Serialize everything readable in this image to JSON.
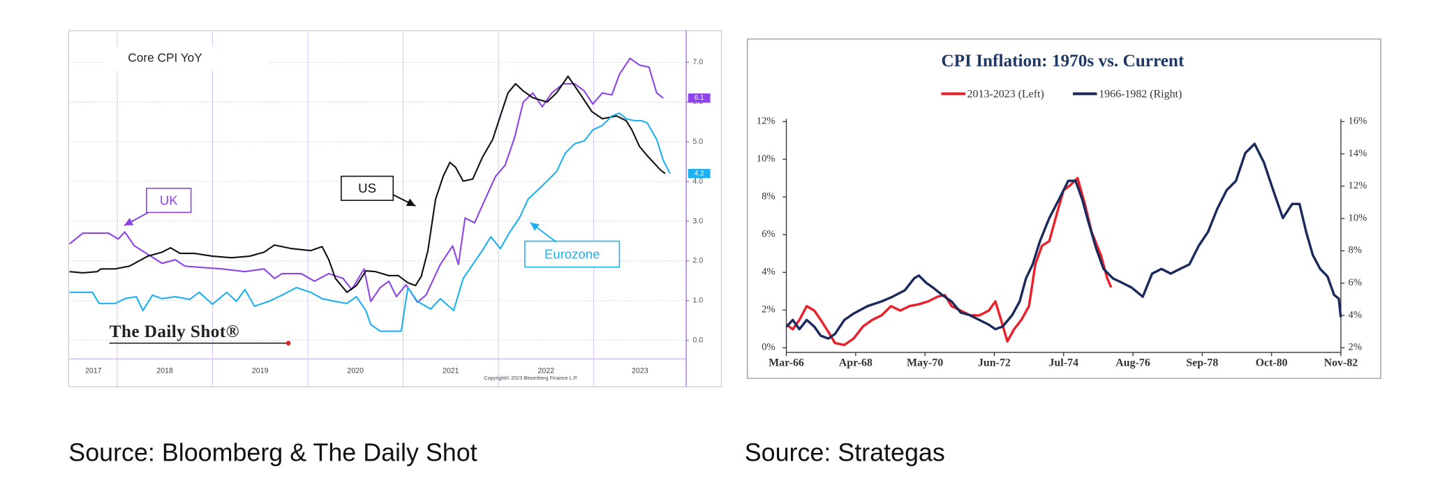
{
  "chart_data": [
    {
      "type": "line",
      "title": "Core CPI YoY",
      "logo": "The Daily Shot®",
      "copyright": "Copyright© 2023 Bloomberg Finance L.P.",
      "source": "Source: Bloomberg & The Daily Shot",
      "xlim": [
        2017.5,
        2023.97
      ],
      "xticks": [
        2017,
        2018,
        2019,
        2020,
        2021,
        2022,
        2023
      ],
      "xtick_labels": "between",
      "ylim": [
        -0.42,
        7.75
      ],
      "yaxis_position": "right",
      "grid": true,
      "legend": "callout",
      "yticks": [
        {
          "value": 0,
          "label": "0.0"
        },
        {
          "value": 1,
          "label": "1.0"
        },
        {
          "value": 2,
          "label": "2.0"
        },
        {
          "value": 3,
          "label": "3.0"
        },
        {
          "value": 4,
          "label": "4.0"
        },
        {
          "value": 5,
          "label": "5.0"
        },
        {
          "value": 6,
          "label": "6.0"
        },
        {
          "value": 7,
          "label": "7.0"
        }
      ],
      "series": [
        {
          "name": "UK",
          "color": "#8b45e8",
          "x": [
            2017.5,
            2017.64,
            2017.91,
            2018.01,
            2018.08,
            2018.18,
            2018.3,
            2018.47,
            2018.61,
            2018.71,
            2018.86,
            2019.1,
            2019.34,
            2019.54,
            2019.65,
            2019.73,
            2019.93,
            2020.07,
            2020.22,
            2020.37,
            2020.46,
            2020.59,
            2020.66,
            2020.76,
            2020.85,
            2020.93,
            2021.03,
            2021.15,
            2021.24,
            2021.39,
            2021.52,
            2021.58,
            2021.65,
            2021.75,
            2021.88,
            2021.97,
            2022.07,
            2022.17,
            2022.26,
            2022.36,
            2022.46,
            2022.56,
            2022.68,
            2022.8,
            2022.9,
            2022.99,
            2023.09,
            2023.19,
            2023.27,
            2023.38,
            2023.48,
            2023.58,
            2023.66,
            2023.73
          ],
          "values": [
            2.43,
            2.7,
            2.7,
            2.55,
            2.73,
            2.38,
            2.2,
            1.94,
            2.03,
            1.87,
            1.84,
            1.8,
            1.73,
            1.8,
            1.56,
            1.68,
            1.68,
            1.49,
            1.68,
            1.56,
            1.28,
            1.8,
            0.98,
            1.33,
            1.49,
            1.1,
            1.4,
            0.96,
            1.14,
            1.91,
            2.38,
            1.91,
            3.08,
            2.96,
            3.66,
            4.13,
            4.41,
            5.11,
            6.0,
            6.23,
            5.88,
            6.23,
            6.46,
            6.46,
            6.28,
            5.95,
            6.23,
            6.18,
            6.7,
            7.1,
            6.93,
            6.88,
            6.23,
            6.1
          ],
          "value_labels": [
            null,
            null,
            null,
            null,
            null,
            null,
            null,
            null,
            null,
            null,
            null,
            null,
            null,
            null,
            null,
            null,
            null,
            null,
            null,
            null,
            null,
            null,
            null,
            null,
            null,
            null,
            null,
            null,
            null,
            null,
            null,
            null,
            null,
            null,
            null,
            null,
            null,
            null,
            null,
            null,
            null,
            null,
            null,
            null,
            null,
            null,
            null,
            null,
            null,
            null,
            null,
            null,
            null,
            "6.1"
          ]
        },
        {
          "name": "US",
          "color": "#111111",
          "x": [
            2017.5,
            2017.64,
            2017.79,
            2017.83,
            2017.98,
            2018.13,
            2018.32,
            2018.47,
            2018.56,
            2018.66,
            2018.81,
            2019.0,
            2019.2,
            2019.39,
            2019.54,
            2019.65,
            2019.83,
            2020.03,
            2020.15,
            2020.22,
            2020.29,
            2020.41,
            2020.51,
            2020.61,
            2020.71,
            2020.85,
            2020.95,
            2021.05,
            2021.13,
            2021.19,
            2021.26,
            2021.34,
            2021.42,
            2021.49,
            2021.55,
            2021.63,
            2021.73,
            2021.83,
            2021.94,
            2022.02,
            2022.1,
            2022.18,
            2022.26,
            2022.36,
            2022.51,
            2022.61,
            2022.73,
            2022.85,
            2022.98,
            2023.09,
            2023.24,
            2023.34,
            2023.4,
            2023.48,
            2023.58,
            2023.7,
            2023.75
          ],
          "values": [
            1.73,
            1.7,
            1.73,
            1.8,
            1.8,
            1.87,
            2.12,
            2.22,
            2.33,
            2.19,
            2.19,
            2.12,
            2.08,
            2.12,
            2.22,
            2.4,
            2.31,
            2.26,
            2.36,
            2.03,
            1.56,
            1.21,
            1.38,
            1.75,
            1.73,
            1.63,
            1.63,
            1.45,
            1.38,
            1.61,
            2.26,
            3.55,
            4.13,
            4.48,
            4.36,
            4.01,
            4.06,
            4.6,
            5.06,
            5.65,
            6.23,
            6.46,
            6.28,
            6.11,
            6.0,
            6.23,
            6.65,
            6.23,
            5.76,
            5.58,
            5.65,
            5.53,
            5.3,
            4.88,
            4.6,
            4.29,
            4.2
          ]
        },
        {
          "name": "Eurozone",
          "color": "#1eb0f0",
          "x": [
            2017.5,
            2017.74,
            2017.81,
            2017.98,
            2018.08,
            2018.2,
            2018.27,
            2018.37,
            2018.47,
            2018.61,
            2018.76,
            2018.86,
            2019.0,
            2019.15,
            2019.25,
            2019.34,
            2019.44,
            2019.59,
            2019.73,
            2019.88,
            2020.03,
            2020.15,
            2020.29,
            2020.41,
            2020.51,
            2020.61,
            2020.66,
            2020.76,
            2020.98,
            2021.05,
            2021.15,
            2021.29,
            2021.39,
            2021.53,
            2021.63,
            2021.73,
            2021.83,
            2021.92,
            2022.02,
            2022.12,
            2022.22,
            2022.31,
            2022.41,
            2022.51,
            2022.61,
            2022.7,
            2022.8,
            2022.9,
            2022.99,
            2023.09,
            2023.19,
            2023.27,
            2023.34,
            2023.43,
            2023.5,
            2023.56,
            2023.66,
            2023.73,
            2023.8
          ],
          "values": [
            1.21,
            1.21,
            0.93,
            0.93,
            1.05,
            1.1,
            0.75,
            1.14,
            1.05,
            1.1,
            1.03,
            1.21,
            0.91,
            1.21,
            0.98,
            1.28,
            0.86,
            0.98,
            1.14,
            1.33,
            1.21,
            1.05,
            0.98,
            0.93,
            1.1,
            0.75,
            0.4,
            0.23,
            0.23,
            1.33,
            0.98,
            0.79,
            1.05,
            0.75,
            1.56,
            1.91,
            2.26,
            2.61,
            2.31,
            2.73,
            3.08,
            3.55,
            3.78,
            4.01,
            4.25,
            4.71,
            4.95,
            5.02,
            5.3,
            5.41,
            5.65,
            5.72,
            5.58,
            5.53,
            5.53,
            5.48,
            5.06,
            4.53,
            4.2
          ],
          "value_labels": [
            null,
            null,
            null,
            null,
            null,
            null,
            null,
            null,
            null,
            null,
            null,
            null,
            null,
            null,
            null,
            null,
            null,
            null,
            null,
            null,
            null,
            null,
            null,
            null,
            null,
            null,
            null,
            null,
            null,
            null,
            null,
            null,
            null,
            null,
            null,
            null,
            null,
            null,
            null,
            null,
            null,
            null,
            null,
            null,
            null,
            null,
            null,
            null,
            null,
            null,
            null,
            null,
            null,
            null,
            null,
            null,
            null,
            null,
            "4.2"
          ]
        }
      ]
    },
    {
      "type": "line",
      "title": "CPI Inflation: 1970s vs. Current",
      "source": "Source: Strategas",
      "xlim": [
        1966.167,
        1982.833
      ],
      "xtick_labels": "on",
      "grid": false,
      "legend": "top",
      "xticks": [
        {
          "value": 1966.167,
          "label": "Mar-66"
        },
        {
          "value": 1968.25,
          "label": "Apr-68"
        },
        {
          "value": 1970.333,
          "label": "May-70"
        },
        {
          "value": 1972.417,
          "label": "Jun-72"
        },
        {
          "value": 1974.5,
          "label": "Jul-74"
        },
        {
          "value": 1976.583,
          "label": "Aug-76"
        },
        {
          "value": 1978.667,
          "label": "Sep-78"
        },
        {
          "value": 1980.75,
          "label": "Oct-80"
        },
        {
          "value": 1982.833,
          "label": "Nov-82"
        }
      ],
      "ylim": [
        0,
        12
      ],
      "yticks": [
        {
          "value": 0,
          "label": "0%"
        },
        {
          "value": 2,
          "label": "2%"
        },
        {
          "value": 4,
          "label": "4%"
        },
        {
          "value": 6,
          "label": "6%"
        },
        {
          "value": 8,
          "label": "8%"
        },
        {
          "value": 10,
          "label": "10%"
        },
        {
          "value": 12,
          "label": "12%"
        }
      ],
      "y2lim": [
        2,
        16
      ],
      "y2ticks": [
        {
          "value": 2,
          "label": "2%"
        },
        {
          "value": 4,
          "label": "4%"
        },
        {
          "value": 6,
          "label": "6%"
        },
        {
          "value": 8,
          "label": "8%"
        },
        {
          "value": 10,
          "label": "10%"
        },
        {
          "value": 12,
          "label": "12%"
        },
        {
          "value": 14,
          "label": "14%"
        },
        {
          "value": 16,
          "label": "16%"
        }
      ],
      "series": [
        {
          "name": "2013-2023 (Left)",
          "color": "#e8212b",
          "x": [
            1966.17,
            1966.36,
            1966.56,
            1966.78,
            1967.01,
            1967.2,
            1967.43,
            1967.63,
            1967.91,
            1968.19,
            1968.47,
            1968.75,
            1969.03,
            1969.31,
            1969.59,
            1969.87,
            1970.15,
            1970.43,
            1970.71,
            1970.93,
            1971.13,
            1971.41,
            1971.69,
            1971.97,
            1972.25,
            1972.45,
            1972.62,
            1972.81,
            1973.01,
            1973.23,
            1973.46,
            1973.65,
            1973.85,
            1974.07,
            1974.3,
            1974.5,
            1974.69,
            1974.92,
            1975.14,
            1975.34,
            1975.62,
            1975.81,
            1975.93
          ],
          "values": [
            1.23,
            0.98,
            1.48,
            2.21,
            1.97,
            1.48,
            0.84,
            0.25,
            0.15,
            0.49,
            1.13,
            1.48,
            1.72,
            2.21,
            1.97,
            2.21,
            2.31,
            2.46,
            2.71,
            2.8,
            2.21,
            1.97,
            1.72,
            1.72,
            1.97,
            2.46,
            1.48,
            0.34,
            0.98,
            1.48,
            2.21,
            4.43,
            5.41,
            5.66,
            7.13,
            8.36,
            8.61,
            9.0,
            7.62,
            6.15,
            4.92,
            3.69,
            3.2
          ]
        },
        {
          "name": "1966-1982 (Right)",
          "color": "#1b2a5c",
          "axis": "y2",
          "x": [
            1966.17,
            1966.36,
            1966.56,
            1966.78,
            1967.01,
            1967.2,
            1967.43,
            1967.63,
            1967.91,
            1968.19,
            1968.61,
            1969.03,
            1969.36,
            1969.73,
            1970.01,
            1970.15,
            1970.37,
            1970.57,
            1970.85,
            1971.13,
            1971.41,
            1971.69,
            1971.97,
            1972.25,
            1972.45,
            1972.67,
            1972.95,
            1973.18,
            1973.37,
            1973.57,
            1973.79,
            1974.07,
            1974.36,
            1974.64,
            1974.86,
            1975.06,
            1975.25,
            1975.48,
            1975.7,
            1975.98,
            1976.26,
            1976.54,
            1976.88,
            1977.16,
            1977.44,
            1977.72,
            1978.0,
            1978.28,
            1978.56,
            1978.84,
            1979.12,
            1979.4,
            1979.68,
            1979.96,
            1980.24,
            1980.52,
            1980.8,
            1981.09,
            1981.37,
            1981.59,
            1981.79,
            1981.99,
            1982.21,
            1982.43,
            1982.63,
            1982.77,
            1982.83
          ],
          "values": [
            3.3,
            3.72,
            3.15,
            3.72,
            3.3,
            2.75,
            2.57,
            2.86,
            3.72,
            4.12,
            4.58,
            4.87,
            5.16,
            5.56,
            6.3,
            6.47,
            6.02,
            5.73,
            5.27,
            4.87,
            4.18,
            4.01,
            3.72,
            3.43,
            3.15,
            3.32,
            4.01,
            4.87,
            6.3,
            7.16,
            8.6,
            10.03,
            11.18,
            12.33,
            12.33,
            11.18,
            9.75,
            8.14,
            6.88,
            6.3,
            6.02,
            5.73,
            5.16,
            6.59,
            6.88,
            6.59,
            6.88,
            7.16,
            8.31,
            9.17,
            10.61,
            11.75,
            12.33,
            14.05,
            14.62,
            13.47,
            11.75,
            10.03,
            10.9,
            10.9,
            9.17,
            7.74,
            6.88,
            6.42,
            5.27,
            5.04,
            3.89
          ]
        }
      ]
    }
  ]
}
